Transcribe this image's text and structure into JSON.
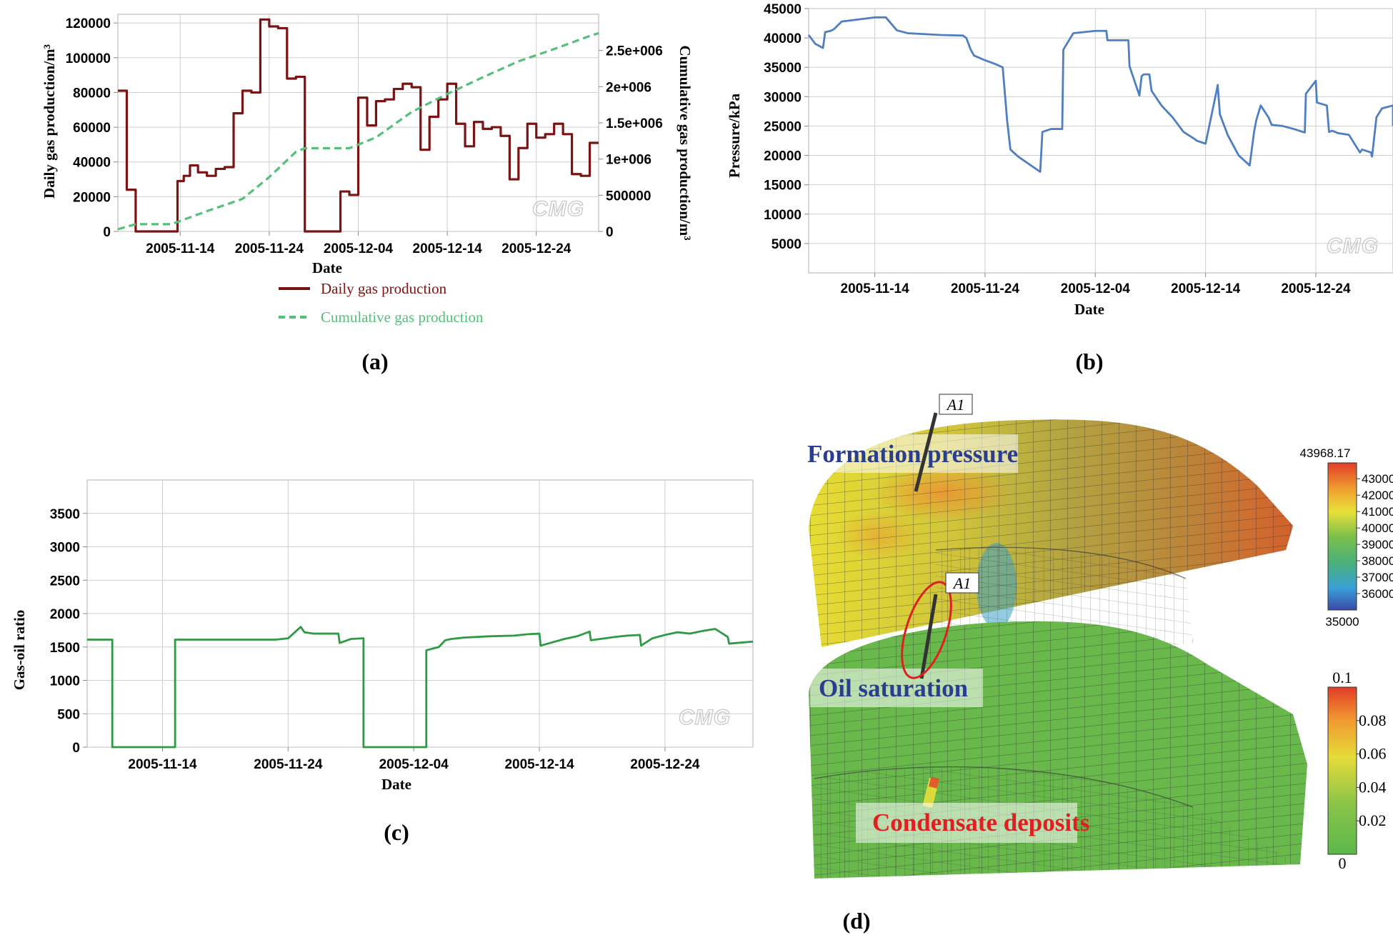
{
  "chart_data": [
    {
      "id": "a",
      "type": "line",
      "caption": "(a)",
      "xlabel": "Date",
      "ylabel": "Daily gas production/m³",
      "y2label": "Cumulative gas production/m³",
      "x_ticks": [
        "2005-11-14",
        "2005-11-24",
        "2005-12-04",
        "2005-12-14",
        "2005-12-24"
      ],
      "y_ticks": [
        "0",
        "20000",
        "40000",
        "60000",
        "80000",
        "100000",
        "120000"
      ],
      "y2_ticks": [
        "0",
        "500000",
        "1e+006",
        "1.5e+006",
        "2e+006",
        "2.5e+006"
      ],
      "xlim": [
        "2005-11-07",
        "2005-12-31"
      ],
      "ylim": [
        0,
        125000
      ],
      "y2lim": [
        0,
        3000000
      ],
      "grid": true,
      "legend_position": "bottom",
      "watermark": "CMG",
      "series": [
        {
          "name": "Daily gas production",
          "color": "#7a1414",
          "style": "solid-step",
          "axis": "left",
          "x": [
            "2005-11-07",
            "2005-11-08",
            "2005-11-09",
            "2005-11-13",
            "2005-11-13.7",
            "2005-11-14.4",
            "2005-11-15.1",
            "2005-11-16",
            "2005-11-17",
            "2005-11-18",
            "2005-11-19",
            "2005-11-20",
            "2005-11-21",
            "2005-11-22",
            "2005-11-23",
            "2005-11-24",
            "2005-11-25",
            "2005-11-26",
            "2005-11-27",
            "2005-11-28",
            "2005-11-29",
            "2005-11-30",
            "2005-12-01",
            "2005-12-02",
            "2005-12-03",
            "2005-12-04",
            "2005-12-05",
            "2005-12-06",
            "2005-12-07",
            "2005-12-08",
            "2005-12-09",
            "2005-12-10",
            "2005-12-11",
            "2005-12-12",
            "2005-12-13",
            "2005-12-14",
            "2005-12-15",
            "2005-12-16",
            "2005-12-17",
            "2005-12-18",
            "2005-12-19",
            "2005-12-20",
            "2005-12-21",
            "2005-12-22",
            "2005-12-23",
            "2005-12-24",
            "2005-12-25",
            "2005-12-26",
            "2005-12-27",
            "2005-12-28",
            "2005-12-29",
            "2005-12-30"
          ],
          "y": [
            81000,
            24000,
            0,
            0,
            29000,
            32000,
            38000,
            34000,
            32000,
            36000,
            37000,
            68000,
            81000,
            80000,
            122000,
            118000,
            117000,
            88000,
            89000,
            0,
            0,
            0,
            0,
            23000,
            21000,
            77000,
            61000,
            75000,
            76000,
            82000,
            85000,
            83000,
            47000,
            66000,
            76000,
            85000,
            62000,
            49000,
            63000,
            59000,
            60000,
            55000,
            30000,
            48000,
            62000,
            54000,
            56000,
            62000,
            56000,
            33000,
            32000,
            51000
          ]
        },
        {
          "name": "Cumulative gas production",
          "color": "#55c07a",
          "style": "dashed",
          "axis": "right",
          "x": [
            "2005-11-07",
            "2005-11-09",
            "2005-11-13",
            "2005-11-17",
            "2005-11-21",
            "2005-11-24",
            "2005-11-27",
            "2005-11-28",
            "2005-12-03",
            "2005-12-06",
            "2005-12-10",
            "2005-12-14",
            "2005-12-18",
            "2005-12-22",
            "2005-12-26",
            "2005-12-30",
            "2005-12-31"
          ],
          "y": [
            30000,
            100000,
            100000,
            280000,
            450000,
            750000,
            1100000,
            1150000,
            1150000,
            1300000,
            1650000,
            1900000,
            2130000,
            2350000,
            2520000,
            2700000,
            2740000
          ]
        }
      ]
    },
    {
      "id": "b",
      "type": "line",
      "caption": "(b)",
      "xlabel": "Date",
      "ylabel": "Pressure/kPa",
      "x_ticks": [
        "2005-11-14",
        "2005-11-24",
        "2005-12-04",
        "2005-12-14",
        "2005-12-24"
      ],
      "y_ticks": [
        "5000",
        "10000",
        "15000",
        "20000",
        "25000",
        "30000",
        "35000",
        "40000",
        "45000"
      ],
      "xlim": [
        "2005-11-08",
        "2005-12-31"
      ],
      "ylim": [
        0,
        45000
      ],
      "grid": true,
      "watermark": "CMG",
      "series": [
        {
          "color": "#4f7fc0",
          "x": [
            "2005-11-08",
            "2005-11-08.6",
            "2005-11-09.3",
            "2005-11-09.5",
            "2005-11-10",
            "2005-11-10.3",
            "2005-11-11",
            "2005-11-14",
            "2005-11-15",
            "2005-11-16",
            "2005-11-17",
            "2005-11-20",
            "2005-11-22",
            "2005-11-22.3",
            "2005-11-22.7",
            "2005-11-23",
            "2005-11-24",
            "2005-11-25",
            "2005-11-25.6",
            "2005-11-26",
            "2005-11-26.3",
            "2005-11-27",
            "2005-11-28",
            "2005-11-29",
            "2005-11-29.2",
            "2005-11-30",
            "2005-12-01",
            "2005-12-01.1",
            "2005-12-02",
            "2005-12-03",
            "2005-12-04",
            "2005-12-05",
            "2005-12-05.1",
            "2005-12-07",
            "2005-12-07.1",
            "2005-12-08",
            "2005-12-08.2",
            "2005-12-08.4",
            "2005-12-08.9",
            "2005-12-09.1",
            "2005-12-10",
            "2005-12-11",
            "2005-12-12",
            "2005-12-13",
            "2005-12-13.2",
            "2005-12-14",
            "2005-12-15",
            "2005-12-15.1",
            "2005-12-15.3",
            "2005-12-16",
            "2005-12-17",
            "2005-12-18",
            "2005-12-18.4",
            "2005-12-18.6",
            "2005-12-19",
            "2005-12-19.7",
            "2005-12-20",
            "2005-12-21",
            "2005-12-22",
            "2005-12-23",
            "2005-12-23.1",
            "2005-12-24",
            "2005-12-24.1",
            "2005-12-25",
            "2005-12-25.2",
            "2005-12-25.5",
            "2005-12-26",
            "2005-12-27",
            "2005-12-28",
            "2005-12-28.2",
            "2005-12-29",
            "2005-12-29.1",
            "2005-12-29.5",
            "2005-12-30",
            "2005-12-31",
            "2005-12-31"
          ],
          "y": [
            40500,
            39000,
            38300,
            41000,
            41200,
            41500,
            42800,
            43500,
            43500,
            41300,
            40800,
            40500,
            40400,
            40000,
            38000,
            37000,
            36200,
            35500,
            35000,
            26000,
            21000,
            19800,
            18500,
            17200,
            24000,
            24500,
            24500,
            38000,
            40800,
            41000,
            41200,
            41200,
            39600,
            39600,
            35200,
            30200,
            33500,
            33800,
            33800,
            31000,
            28500,
            26500,
            24000,
            22800,
            22500,
            22000,
            31000,
            32000,
            27000,
            23500,
            20000,
            18300,
            24000,
            26000,
            28500,
            26500,
            25200,
            25000,
            24500,
            23900,
            30500,
            32700,
            29000,
            28500,
            24000,
            24200,
            23800,
            23500,
            20500,
            21000,
            20500,
            19800,
            26500,
            28000,
            28500,
            25000
          ]
        }
      ]
    },
    {
      "id": "c",
      "type": "line",
      "caption": "(c)",
      "xlabel": "Date",
      "ylabel": "Gas-oil ratio",
      "x_ticks": [
        "2005-11-14",
        "2005-11-24",
        "2005-12-04",
        "2005-12-14",
        "2005-12-24"
      ],
      "y_ticks": [
        "0",
        "500",
        "1000",
        "1500",
        "2000",
        "2500",
        "3000",
        "3500"
      ],
      "xlim": [
        "2005-11-08",
        "2005-12-31"
      ],
      "ylim": [
        0,
        4000
      ],
      "grid": true,
      "watermark": "CMG",
      "series": [
        {
          "color": "#2e9a46",
          "x": [
            "2005-11-08",
            "2005-11-10",
            "2005-11-10",
            "2005-11-15",
            "2005-11-15",
            "2005-11-23",
            "2005-11-24",
            "2005-11-25",
            "2005-11-25.3",
            "2005-11-26",
            "2005-11-27",
            "2005-11-28",
            "2005-11-28.1",
            "2005-11-29",
            "2005-11-30",
            "2005-11-30",
            "2005-12-05",
            "2005-12-05",
            "2005-12-06",
            "2005-12-06.5",
            "2005-12-07",
            "2005-12-08",
            "2005-12-10",
            "2005-12-12",
            "2005-12-13",
            "2005-12-14",
            "2005-12-14.1",
            "2005-12-16",
            "2005-12-17",
            "2005-12-18",
            "2005-12-18.1",
            "2005-12-20",
            "2005-12-21",
            "2005-12-22",
            "2005-12-22.1",
            "2005-12-23",
            "2005-12-24",
            "2005-12-25",
            "2005-12-26",
            "2005-12-27",
            "2005-12-28",
            "2005-12-29",
            "2005-12-29.1",
            "2005-12-31"
          ],
          "y": [
            1610,
            1610,
            0,
            0,
            1610,
            1610,
            1630,
            1800,
            1720,
            1700,
            1700,
            1700,
            1560,
            1620,
            1630,
            0,
            0,
            1450,
            1500,
            1600,
            1620,
            1640,
            1660,
            1670,
            1690,
            1700,
            1520,
            1620,
            1660,
            1730,
            1600,
            1650,
            1670,
            1680,
            1520,
            1630,
            1680,
            1720,
            1700,
            1740,
            1770,
            1650,
            1550,
            1580
          ]
        }
      ]
    }
  ],
  "panel_a_legend": [
    {
      "label": "Daily gas production",
      "color": "#7a1414"
    },
    {
      "label": "Cumulative gas production",
      "color": "#55c07a"
    }
  ],
  "panel_d": {
    "caption": "(d)",
    "top": {
      "title": "Formation pressure",
      "title_color": "#2b3e8e",
      "well_label": "A1",
      "colorbar_max": "43968.17",
      "colorbar_min": "35000",
      "colorbar_ticks": [
        "43000",
        "42000",
        "41000",
        "40000",
        "39000",
        "38000",
        "37000",
        "36000"
      ]
    },
    "bottom": {
      "title": "Oil saturation",
      "title_color": "#2b3e8e",
      "well_label": "A1",
      "annotation": "Condensate deposits",
      "annotation_color": "#e02020",
      "colorbar_max": "0.1",
      "colorbar_min": "0",
      "colorbar_ticks": [
        "0.08",
        "0.06",
        "0.04",
        "0.02"
      ]
    }
  }
}
